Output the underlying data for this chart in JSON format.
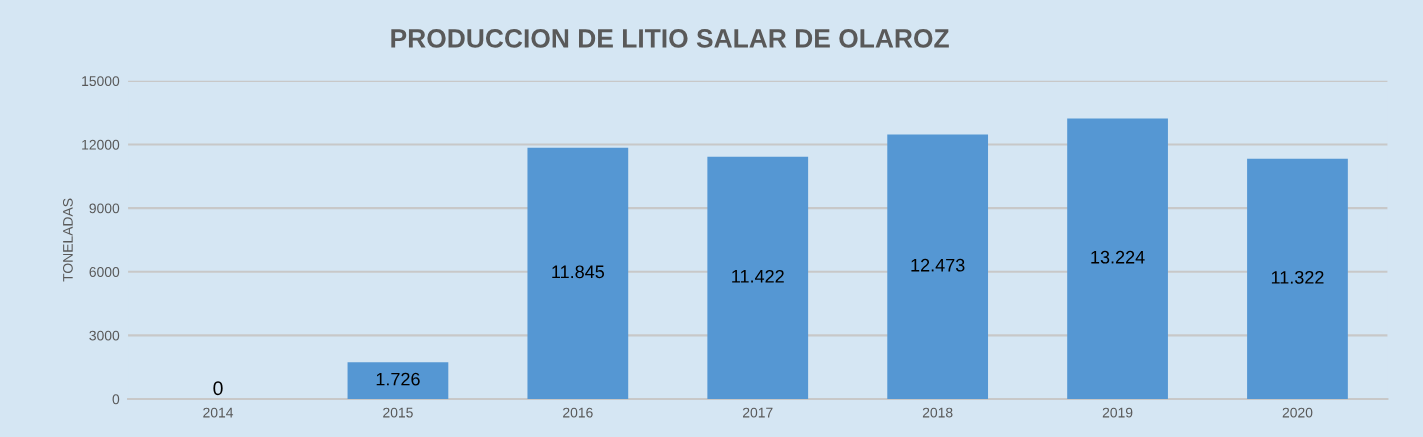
{
  "chart_data": {
    "type": "bar",
    "title": "PRODUCCION DE LITIO SALAR DE OLAROZ",
    "ylabel": "TONELADAS",
    "categories": [
      "2014",
      "2015",
      "2016",
      "2017",
      "2018",
      "2019",
      "2020"
    ],
    "values": [
      0,
      1726,
      11845,
      11422,
      12473,
      13224,
      11322
    ],
    "value_labels": [
      "0",
      "1.726",
      "11.845",
      "11.422",
      "12.473",
      "13.224",
      "11.322"
    ],
    "color": "#5597d3",
    "ylim": [
      0,
      15000
    ],
    "yticks": [
      0,
      3000,
      6000,
      9000,
      12000,
      15000
    ],
    "grid": "y",
    "legend": false
  }
}
